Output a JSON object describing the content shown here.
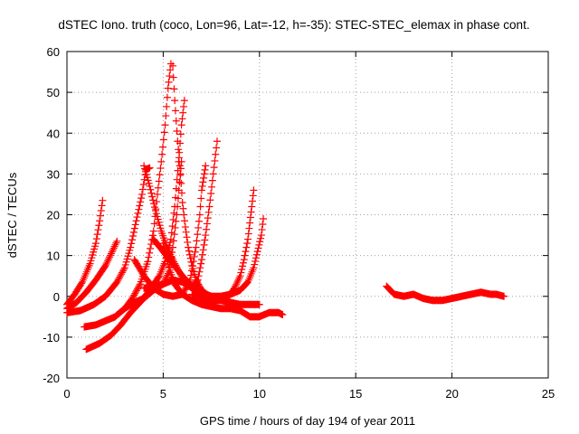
{
  "chart_data": {
    "type": "scatter",
    "title": "dSTEC Iono. truth (coco, Lon=96, Lat=-12, h=-35): STEC-STEC_elemax in phase cont.",
    "xlabel": "GPS time / hours of day 194 of year 2011",
    "ylabel": "dSTEC  / TECUs",
    "xlim": [
      0,
      25
    ],
    "ylim": [
      -20,
      60
    ],
    "xticks": [
      0,
      5,
      10,
      15,
      20,
      25
    ],
    "yticks": [
      -20,
      -10,
      0,
      10,
      20,
      30,
      40,
      50,
      60
    ],
    "grid": true,
    "marker": "+",
    "series": [
      {
        "points": [
          [
            0.0,
            -2.0
          ],
          [
            0.4,
            0.5
          ],
          [
            0.8,
            3.5
          ],
          [
            1.2,
            8.0
          ],
          [
            1.5,
            13.0
          ],
          [
            1.7,
            18.5
          ],
          [
            1.85,
            23.5
          ]
        ]
      },
      {
        "points": [
          [
            0.0,
            -3.0
          ],
          [
            0.5,
            -1.5
          ],
          [
            1.0,
            1.0
          ],
          [
            1.5,
            4.0
          ],
          [
            2.0,
            7.5
          ],
          [
            2.3,
            10.5
          ],
          [
            2.6,
            13.5
          ]
        ]
      },
      {
        "points": [
          [
            0.0,
            -4.0
          ],
          [
            0.7,
            -3.5
          ],
          [
            1.4,
            -2.0
          ],
          [
            2.0,
            0.0
          ],
          [
            2.6,
            3.5
          ],
          [
            3.0,
            7.0
          ],
          [
            3.3,
            12.0
          ],
          [
            3.6,
            18.5
          ],
          [
            3.9,
            25.0
          ],
          [
            4.1,
            31.0
          ],
          [
            4.3,
            31.5
          ]
        ]
      },
      {
        "points": [
          [
            4.0,
            32.0
          ],
          [
            4.3,
            27.0
          ],
          [
            4.6,
            21.0
          ],
          [
            4.9,
            16.0
          ],
          [
            5.2,
            12.0
          ],
          [
            5.6,
            8.0
          ],
          [
            6.0,
            4.5
          ],
          [
            6.5,
            2.0
          ],
          [
            7.0,
            0.5
          ]
        ]
      },
      {
        "points": [
          [
            0.9,
            -7.5
          ],
          [
            1.5,
            -7.0
          ],
          [
            2.0,
            -6.0
          ],
          [
            2.5,
            -5.0
          ],
          [
            3.0,
            -3.0
          ],
          [
            3.4,
            -0.5
          ],
          [
            3.8,
            3.0
          ],
          [
            4.2,
            8.5
          ],
          [
            4.5,
            16.0
          ],
          [
            4.7,
            25.0
          ],
          [
            4.9,
            33.0
          ],
          [
            5.1,
            42.0
          ],
          [
            5.25,
            51.0
          ],
          [
            5.4,
            57.0
          ]
        ]
      },
      {
        "points": [
          [
            1.0,
            -13.0
          ],
          [
            1.7,
            -11.5
          ],
          [
            2.3,
            -9.5
          ],
          [
            2.8,
            -7.0
          ],
          [
            3.3,
            -4.0
          ],
          [
            3.8,
            -1.5
          ],
          [
            4.3,
            1.5
          ],
          [
            4.8,
            5.0
          ],
          [
            5.1,
            8.5
          ],
          [
            5.4,
            14.0
          ],
          [
            5.6,
            22.0
          ],
          [
            5.8,
            33.0
          ],
          [
            5.95,
            42.0
          ],
          [
            6.1,
            48.0
          ]
        ]
      },
      {
        "points": [
          [
            5.5,
            56.5
          ],
          [
            5.6,
            48.0
          ],
          [
            5.75,
            38.0
          ],
          [
            5.9,
            30.0
          ],
          [
            6.0,
            23.0
          ],
          [
            6.15,
            17.0
          ],
          [
            6.3,
            12.0
          ],
          [
            6.5,
            7.5
          ],
          [
            6.7,
            4.0
          ],
          [
            7.0,
            1.5
          ],
          [
            7.4,
            0.0
          ],
          [
            7.8,
            -0.5
          ]
        ]
      },
      {
        "points": [
          [
            2.5,
            -5.0
          ],
          [
            3.0,
            -3.0
          ],
          [
            3.5,
            -1.5
          ],
          [
            4.0,
            -0.5
          ],
          [
            4.5,
            1.5
          ],
          [
            5.0,
            3.0
          ],
          [
            5.3,
            6.0
          ],
          [
            5.5,
            12.0
          ],
          [
            5.7,
            20.0
          ],
          [
            5.85,
            28.0
          ],
          [
            5.95,
            33.0
          ]
        ]
      },
      {
        "points": [
          [
            5.0,
            13.0
          ],
          [
            5.3,
            7.0
          ],
          [
            5.6,
            3.0
          ],
          [
            6.0,
            0.5
          ],
          [
            6.5,
            -1.0
          ],
          [
            7.0,
            -2.0
          ],
          [
            7.5,
            -2.5
          ],
          [
            8.0,
            -3.0
          ],
          [
            8.5,
            -3.0
          ],
          [
            9.0,
            -3.5
          ],
          [
            9.5,
            -5.0
          ],
          [
            10.0,
            -5.0
          ],
          [
            10.5,
            -4.0
          ],
          [
            11.0,
            -4.0
          ],
          [
            11.2,
            -4.5
          ]
        ]
      },
      {
        "points": [
          [
            4.5,
            14.0
          ],
          [
            5.0,
            11.0
          ],
          [
            5.5,
            8.0
          ],
          [
            6.0,
            5.0
          ],
          [
            6.5,
            2.5
          ],
          [
            7.0,
            1.0
          ],
          [
            7.5,
            0.0
          ],
          [
            8.0,
            -1.0
          ],
          [
            8.5,
            -1.5
          ],
          [
            9.0,
            -2.0
          ],
          [
            9.5,
            -2.0
          ],
          [
            10.0,
            -2.0
          ]
        ]
      },
      {
        "points": [
          [
            3.5,
            9.0
          ],
          [
            4.0,
            5.0
          ],
          [
            4.5,
            2.0
          ],
          [
            5.0,
            0.5
          ],
          [
            5.5,
            0.0
          ],
          [
            6.0,
            0.5
          ],
          [
            6.4,
            4.0
          ],
          [
            6.7,
            12.0
          ],
          [
            6.9,
            20.0
          ],
          [
            7.0,
            26.0
          ],
          [
            7.1,
            29.0
          ],
          [
            7.2,
            32.0
          ]
        ]
      },
      {
        "points": [
          [
            4.0,
            2.0
          ],
          [
            4.5,
            2.5
          ],
          [
            5.0,
            3.0
          ],
          [
            5.5,
            4.0
          ],
          [
            6.0,
            3.5
          ],
          [
            6.5,
            2.0
          ],
          [
            6.8,
            4.0
          ],
          [
            7.0,
            9.0
          ],
          [
            7.2,
            15.0
          ],
          [
            7.4,
            22.0
          ],
          [
            7.6,
            30.0
          ],
          [
            7.8,
            38.0
          ]
        ]
      },
      {
        "points": [
          [
            6.5,
            0.5
          ],
          [
            7.0,
            -0.5
          ],
          [
            7.5,
            -1.0
          ],
          [
            8.0,
            -1.0
          ],
          [
            8.4,
            0.0
          ],
          [
            8.7,
            2.0
          ],
          [
            9.0,
            5.0
          ],
          [
            9.2,
            9.0
          ],
          [
            9.4,
            14.0
          ],
          [
            9.5,
            18.0
          ],
          [
            9.6,
            22.0
          ],
          [
            9.7,
            26.0
          ]
        ]
      },
      {
        "points": [
          [
            7.0,
            0.0
          ],
          [
            7.5,
            0.0
          ],
          [
            8.0,
            0.0
          ],
          [
            8.5,
            0.5
          ],
          [
            9.0,
            1.5
          ],
          [
            9.4,
            3.5
          ],
          [
            9.7,
            7.0
          ],
          [
            9.9,
            11.0
          ],
          [
            10.1,
            15.0
          ],
          [
            10.2,
            19.0
          ]
        ]
      },
      {
        "points": [
          [
            16.6,
            2.5
          ],
          [
            17.0,
            0.5
          ],
          [
            17.5,
            0.0
          ],
          [
            18.0,
            0.5
          ],
          [
            18.5,
            -0.5
          ],
          [
            19.0,
            -1.0
          ],
          [
            19.5,
            -1.0
          ],
          [
            20.0,
            -0.5
          ],
          [
            20.5,
            0.0
          ],
          [
            21.0,
            0.5
          ],
          [
            21.5,
            1.0
          ],
          [
            22.0,
            0.5
          ],
          [
            22.3,
            0.5
          ],
          [
            22.7,
            0.0
          ]
        ]
      }
    ]
  }
}
